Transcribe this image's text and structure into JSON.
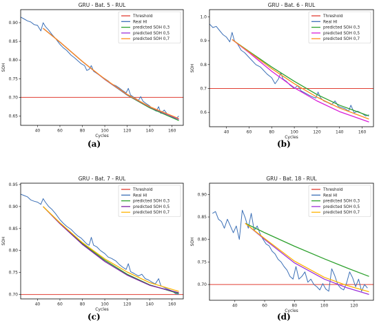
{
  "chart_data": [
    {
      "type": "line",
      "panel_label": "(a)",
      "title": "GRU - Bat. 5 - RUL",
      "xlabel": "Cycles",
      "ylabel": "SOH",
      "xlim": [
        25,
        170
      ],
      "ylim": [
        0.625,
        0.935
      ],
      "xticks": [
        40,
        60,
        80,
        100,
        120,
        140,
        160
      ],
      "yticks": [
        0.65,
        0.7,
        0.75,
        0.8,
        0.85,
        0.9
      ],
      "ytick_labels": [
        "0.65",
        "0.70",
        "0.75",
        "0.80",
        "0.85",
        "0.90"
      ],
      "grid": false,
      "legend": "top-right",
      "series": [
        {
          "name": "Threshold",
          "color": "#e03c31",
          "x": [
            25,
            170
          ],
          "y": [
            0.7,
            0.7
          ]
        },
        {
          "name": "Real HI",
          "color": "#3b6fb6",
          "x": [
            25,
            28,
            31,
            34,
            37,
            40,
            43,
            45,
            47,
            50,
            53,
            56,
            60,
            63,
            66,
            70,
            73,
            76,
            79,
            82,
            84,
            86,
            88,
            90,
            93,
            96,
            100,
            103,
            106,
            110,
            113,
            116,
            119,
            121,
            123,
            126,
            130,
            132,
            134,
            137,
            140,
            143,
            146,
            148,
            150,
            153,
            156,
            160,
            163,
            166
          ],
          "y": [
            0.915,
            0.91,
            0.905,
            0.902,
            0.895,
            0.893,
            0.878,
            0.9,
            0.89,
            0.88,
            0.868,
            0.858,
            0.842,
            0.833,
            0.826,
            0.813,
            0.806,
            0.798,
            0.79,
            0.785,
            0.772,
            0.775,
            0.785,
            0.77,
            0.764,
            0.758,
            0.75,
            0.744,
            0.736,
            0.731,
            0.725,
            0.718,
            0.712,
            0.724,
            0.706,
            0.7,
            0.692,
            0.702,
            0.69,
            0.683,
            0.677,
            0.668,
            0.663,
            0.675,
            0.657,
            0.666,
            0.654,
            0.648,
            0.642,
            0.65
          ]
        },
        {
          "name": "predicted SOH 0,3",
          "color": "#2ca02c",
          "x": [
            45,
            60,
            80,
            100,
            120,
            140,
            166
          ],
          "y": [
            0.885,
            0.848,
            0.796,
            0.748,
            0.706,
            0.672,
            0.638
          ]
        },
        {
          "name": "predicted SOH 0,5",
          "color": "#9b30d9",
          "x": [
            45,
            60,
            80,
            100,
            120,
            140,
            166
          ],
          "y": [
            0.885,
            0.848,
            0.796,
            0.748,
            0.707,
            0.674,
            0.641
          ]
        },
        {
          "name": "predicted SOH 0,7",
          "color": "#ff8c1a",
          "x": [
            45,
            60,
            80,
            100,
            120,
            140,
            166
          ],
          "y": [
            0.885,
            0.848,
            0.796,
            0.749,
            0.708,
            0.675,
            0.643
          ]
        }
      ]
    },
    {
      "type": "line",
      "panel_label": "(b)",
      "title": "GRU - Bat. 6 - RUL",
      "xlabel": "Cycles",
      "ylabel": "SOH",
      "xlim": [
        25,
        170
      ],
      "ylim": [
        0.54,
        1.03
      ],
      "xticks": [
        40,
        60,
        80,
        100,
        120,
        140,
        160
      ],
      "yticks": [
        0.6,
        0.7,
        0.8,
        0.9,
        1.0
      ],
      "ytick_labels": [
        "0.6",
        "0.7",
        "0.8",
        "0.9",
        "1.0"
      ],
      "grid": false,
      "legend": "top-right",
      "series": [
        {
          "name": "Threshold",
          "color": "#e03c31",
          "x": [
            25,
            170
          ],
          "y": [
            0.7,
            0.7
          ]
        },
        {
          "name": "Real HI",
          "color": "#3b6fb6",
          "x": [
            25,
            28,
            31,
            34,
            37,
            40,
            43,
            45,
            47,
            50,
            53,
            56,
            60,
            63,
            66,
            70,
            73,
            76,
            80,
            83,
            86,
            88,
            90,
            93,
            96,
            100,
            103,
            106,
            110,
            113,
            116,
            119,
            121,
            123,
            126,
            130,
            133,
            136,
            139,
            142,
            145,
            148,
            150,
            153,
            156,
            160,
            163,
            166
          ],
          "y": [
            0.97,
            0.955,
            0.96,
            0.942,
            0.925,
            0.915,
            0.895,
            0.935,
            0.9,
            0.885,
            0.86,
            0.85,
            0.83,
            0.815,
            0.8,
            0.79,
            0.775,
            0.76,
            0.745,
            0.72,
            0.74,
            0.765,
            0.74,
            0.73,
            0.715,
            0.7,
            0.712,
            0.69,
            0.68,
            0.672,
            0.665,
            0.66,
            0.685,
            0.662,
            0.648,
            0.64,
            0.632,
            0.648,
            0.625,
            0.62,
            0.615,
            0.605,
            0.63,
            0.598,
            0.605,
            0.595,
            0.585,
            0.59
          ]
        },
        {
          "name": "predicted SOH 0,3",
          "color": "#2ca02c",
          "x": [
            45,
            60,
            80,
            100,
            120,
            140,
            166
          ],
          "y": [
            0.905,
            0.855,
            0.79,
            0.73,
            0.675,
            0.63,
            0.585
          ]
        },
        {
          "name": "predicted SOH 0,5",
          "color": "#d81bd8",
          "x": [
            45,
            60,
            80,
            100,
            120,
            140,
            166
          ],
          "y": [
            0.905,
            0.85,
            0.772,
            0.703,
            0.648,
            0.603,
            0.56
          ]
        },
        {
          "name": "predicted SOH 0,7",
          "color": "#ff8c1a",
          "x": [
            45,
            60,
            80,
            100,
            120,
            140,
            166
          ],
          "y": [
            0.905,
            0.853,
            0.783,
            0.72,
            0.664,
            0.618,
            0.572
          ]
        }
      ]
    },
    {
      "type": "line",
      "panel_label": "(c)",
      "title": "GRU - Bat. 7 - RUL",
      "xlabel": "Cycles",
      "ylabel": "SOH",
      "xlim": [
        25,
        170
      ],
      "ylim": [
        0.69,
        0.953
      ],
      "xticks": [
        40,
        60,
        80,
        100,
        120,
        140,
        160
      ],
      "yticks": [
        0.7,
        0.75,
        0.8,
        0.85,
        0.9,
        0.95
      ],
      "ytick_labels": [
        "0.70",
        "0.75",
        "0.80",
        "0.85",
        "0.90",
        "0.95"
      ],
      "grid": false,
      "legend": "top-right",
      "series": [
        {
          "name": "Threshold",
          "color": "#e03c31",
          "x": [
            25,
            170
          ],
          "y": [
            0.7,
            0.7
          ]
        },
        {
          "name": "Real HI",
          "color": "#3b6fb6",
          "x": [
            25,
            28,
            31,
            34,
            37,
            40,
            43,
            45,
            47,
            50,
            53,
            56,
            60,
            63,
            66,
            70,
            73,
            76,
            79,
            82,
            84,
            86,
            88,
            90,
            93,
            96,
            100,
            103,
            106,
            110,
            113,
            116,
            119,
            121,
            123,
            126,
            130,
            133,
            136,
            139,
            142,
            145,
            148,
            150,
            153,
            156,
            160,
            163,
            166
          ],
          "y": [
            0.928,
            0.925,
            0.922,
            0.915,
            0.912,
            0.91,
            0.905,
            0.918,
            0.91,
            0.9,
            0.893,
            0.884,
            0.87,
            0.862,
            0.855,
            0.848,
            0.84,
            0.833,
            0.828,
            0.82,
            0.815,
            0.812,
            0.83,
            0.812,
            0.808,
            0.8,
            0.793,
            0.785,
            0.782,
            0.776,
            0.768,
            0.762,
            0.757,
            0.77,
            0.752,
            0.748,
            0.742,
            0.746,
            0.736,
            0.733,
            0.728,
            0.724,
            0.736,
            0.72,
            0.716,
            0.712,
            0.708,
            0.702,
            0.7
          ]
        },
        {
          "name": "predicted SOH 0,3",
          "color": "#2ca02c",
          "x": [
            45,
            60,
            80,
            100,
            120,
            140,
            166
          ],
          "y": [
            0.9,
            0.862,
            0.816,
            0.778,
            0.746,
            0.722,
            0.702
          ]
        },
        {
          "name": "predicted SOH 0,5",
          "color": "#7b1fa2",
          "x": [
            45,
            60,
            80,
            100,
            120,
            140,
            166
          ],
          "y": [
            0.9,
            0.861,
            0.814,
            0.775,
            0.744,
            0.721,
            0.704
          ]
        },
        {
          "name": "predicted SOH 0,7",
          "color": "#ffb300",
          "x": [
            45,
            60,
            80,
            100,
            120,
            140,
            166
          ],
          "y": [
            0.9,
            0.863,
            0.818,
            0.781,
            0.751,
            0.727,
            0.707
          ]
        }
      ]
    },
    {
      "type": "line",
      "panel_label": "(d)",
      "title": "GRU - Bat. 18 - RUL",
      "xlabel": "Cycles",
      "ylabel": "SOH",
      "xlim": [
        23,
        133
      ],
      "ylim": [
        0.665,
        0.925
      ],
      "xticks": [
        40,
        60,
        80,
        100,
        120
      ],
      "yticks": [
        0.7,
        0.75,
        0.8,
        0.85,
        0.9
      ],
      "ytick_labels": [
        "0.70",
        "0.75",
        "0.80",
        "0.85",
        "0.90"
      ],
      "grid": false,
      "legend": "top-right",
      "series": [
        {
          "name": "Threshold",
          "color": "#e03c31",
          "x": [
            23,
            133
          ],
          "y": [
            0.7,
            0.7
          ]
        },
        {
          "name": "Real HI",
          "color": "#3b6fb6",
          "x": [
            25,
            27,
            29,
            31,
            33,
            35,
            37,
            39,
            41,
            43,
            45,
            47,
            49,
            51,
            53,
            55,
            57,
            59,
            61,
            63,
            65,
            67,
            69,
            71,
            73,
            75,
            77,
            79,
            81,
            83,
            85,
            87,
            89,
            91,
            93,
            95,
            97,
            99,
            101,
            103,
            105,
            107,
            109,
            111,
            113,
            115,
            117,
            119,
            121,
            123,
            125,
            127,
            129
          ],
          "y": [
            0.858,
            0.862,
            0.845,
            0.84,
            0.825,
            0.845,
            0.83,
            0.815,
            0.83,
            0.8,
            0.865,
            0.848,
            0.825,
            0.858,
            0.82,
            0.83,
            0.812,
            0.8,
            0.79,
            0.786,
            0.774,
            0.768,
            0.756,
            0.75,
            0.74,
            0.732,
            0.718,
            0.712,
            0.74,
            0.712,
            0.718,
            0.728,
            0.705,
            0.712,
            0.7,
            0.695,
            0.688,
            0.702,
            0.69,
            0.685,
            0.735,
            0.72,
            0.7,
            0.692,
            0.688,
            0.704,
            0.728,
            0.715,
            0.695,
            0.712,
            0.685,
            0.7,
            0.692
          ]
        },
        {
          "name": "predicted SOH 0,3",
          "color": "#2ca02c",
          "x": [
            47,
            60,
            80,
            100,
            115,
            130
          ],
          "y": [
            0.836,
            0.815,
            0.785,
            0.757,
            0.737,
            0.718
          ]
        },
        {
          "name": "predicted SOH 0,5",
          "color": "#9b30d9",
          "x": [
            47,
            60,
            80,
            100,
            115,
            130
          ],
          "y": [
            0.836,
            0.8,
            0.748,
            0.712,
            0.693,
            0.678
          ]
        },
        {
          "name": "predicted SOH 0,7",
          "color": "#ffb300",
          "x": [
            47,
            60,
            80,
            100,
            115,
            130
          ],
          "y": [
            0.836,
            0.802,
            0.752,
            0.716,
            0.698,
            0.684
          ]
        }
      ]
    }
  ]
}
